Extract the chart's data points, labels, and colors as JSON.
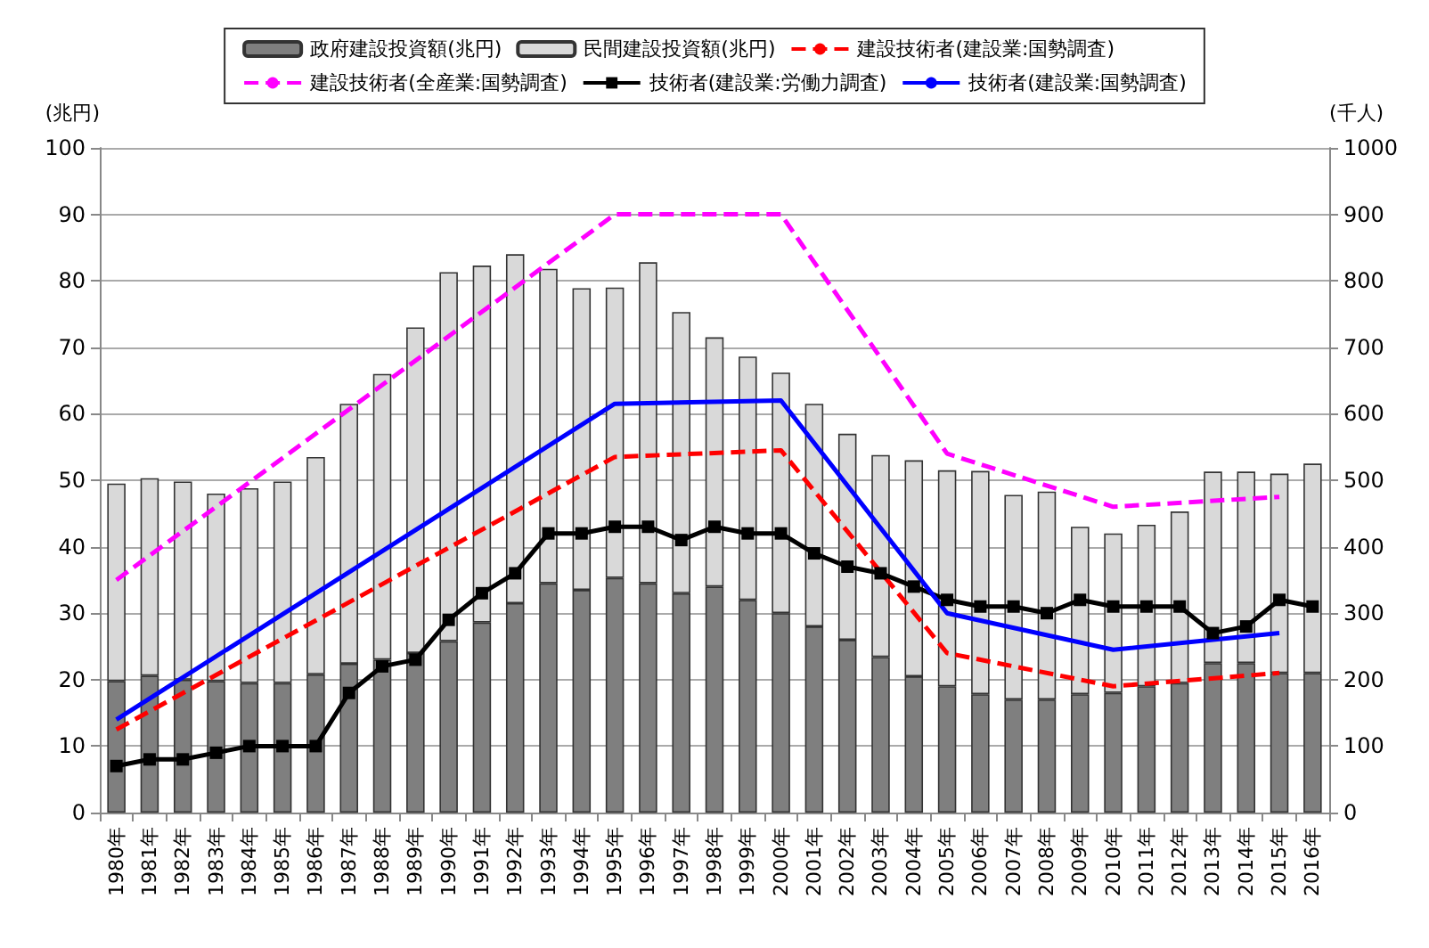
{
  "chart_data": {
    "type": "bar",
    "stacked": true,
    "ylabel": "(兆円)",
    "y2label": "(千人)",
    "categories": [
      "1980年",
      "1981年",
      "1982年",
      "1983年",
      "1984年",
      "1985年",
      "1986年",
      "1987年",
      "1988年",
      "1989年",
      "1990年",
      "1991年",
      "1992年",
      "1993年",
      "1994年",
      "1995年",
      "1996年",
      "1997年",
      "1998年",
      "1999年",
      "2000年",
      "2001年",
      "2002年",
      "2003年",
      "2004年",
      "2005年",
      "2006年",
      "2007年",
      "2008年",
      "2009年",
      "2010年",
      "2011年",
      "2012年",
      "2013年",
      "2014年",
      "2015年",
      "2016年"
    ],
    "series": [
      {
        "name": "政府建設投資額(兆円)",
        "color": "#7f7f7f",
        "values": [
          19.8,
          20.6,
          20,
          19.8,
          19.5,
          19.5,
          20.8,
          22.4,
          23,
          24,
          25.8,
          28.6,
          31.5,
          34.5,
          33.5,
          35.3,
          34.5,
          33,
          34,
          32,
          30,
          28,
          26,
          23.4,
          20.5,
          19,
          17.8,
          17,
          17,
          17.8,
          18,
          19,
          19.5,
          22.5,
          22.5,
          21,
          21
        ]
      },
      {
        "name": "民間建設投資額(兆円)",
        "color": "#d9d9d9",
        "values": [
          29.7,
          29.7,
          29.8,
          28.2,
          29.3,
          30.3,
          32.7,
          39.1,
          43,
          49,
          55.5,
          53.7,
          52.5,
          47.3,
          45.4,
          43.7,
          48.3,
          42.3,
          37.5,
          36.6,
          36.2,
          33.5,
          31,
          30.4,
          32.5,
          32.5,
          33.6,
          30.8,
          31.3,
          25.2,
          24,
          24.3,
          25.8,
          28.8,
          28.8,
          30,
          31.5
        ]
      },
      {
        "name": "建設技術者(建設業:国勢調査)",
        "type": "line",
        "axis": "y2",
        "color": "#ff0000",
        "line_style": "dashed",
        "marker": "none",
        "values": [
          125,
          null,
          null,
          null,
          null,
          null,
          null,
          null,
          null,
          null,
          null,
          null,
          null,
          null,
          null,
          535,
          null,
          null,
          null,
          null,
          545,
          null,
          null,
          null,
          null,
          240,
          null,
          null,
          null,
          null,
          190,
          null,
          null,
          null,
          null,
          210,
          null
        ]
      },
      {
        "name": "建設技術者(全産業:国勢調査)",
        "type": "line",
        "axis": "y2",
        "color": "#ff00ff",
        "line_style": "dashed",
        "marker": "none",
        "values": [
          350,
          null,
          null,
          null,
          null,
          null,
          null,
          null,
          null,
          null,
          null,
          null,
          null,
          null,
          null,
          900,
          null,
          null,
          null,
          null,
          900,
          null,
          null,
          null,
          null,
          540,
          null,
          null,
          null,
          null,
          460,
          null,
          null,
          null,
          null,
          475,
          null
        ]
      },
      {
        "name": "技術者(建設業:労働力調査)",
        "type": "line",
        "axis": "y2",
        "color": "#000000",
        "line_style": "solid",
        "marker": "square",
        "values": [
          70,
          80,
          80,
          90,
          100,
          100,
          100,
          180,
          220,
          230,
          290,
          330,
          360,
          420,
          420,
          430,
          430,
          410,
          430,
          420,
          420,
          390,
          370,
          360,
          340,
          320,
          310,
          310,
          300,
          320,
          310,
          310,
          310,
          270,
          280,
          320,
          310
        ]
      },
      {
        "name": "技術者(建設業:国勢調査)",
        "type": "line",
        "axis": "y2",
        "color": "#0000ff",
        "line_style": "solid",
        "marker": "none",
        "values": [
          140,
          null,
          null,
          null,
          null,
          null,
          null,
          null,
          null,
          null,
          null,
          null,
          null,
          null,
          null,
          615,
          null,
          null,
          null,
          null,
          620,
          null,
          null,
          null,
          null,
          300,
          null,
          null,
          null,
          null,
          245,
          null,
          null,
          null,
          null,
          270,
          null
        ]
      }
    ],
    "ylim": [
      0,
      100
    ],
    "yticks": [
      0,
      10,
      20,
      30,
      40,
      50,
      60,
      70,
      80,
      90,
      100
    ],
    "y2lim": [
      0,
      1000
    ],
    "y2ticks": [
      0,
      100,
      200,
      300,
      400,
      500,
      600,
      700,
      800,
      900,
      1000
    ],
    "grid": "y",
    "legend": "top"
  }
}
